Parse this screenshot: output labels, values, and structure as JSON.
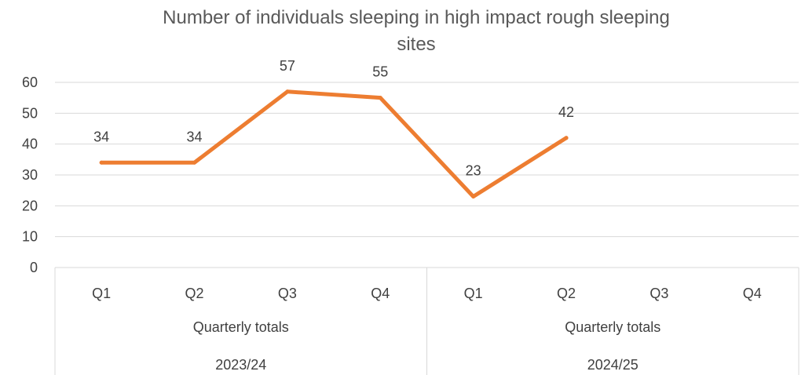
{
  "chart_data": {
    "type": "line",
    "title_line1": "Number of individuals sleeping in high impact rough sleeping",
    "title_line2": "sites",
    "categories": [
      "Q1",
      "Q2",
      "Q3",
      "Q4",
      "Q1",
      "Q2",
      "Q3",
      "Q4"
    ],
    "groups": [
      {
        "label": "Quarterly totals",
        "year": "2023/24"
      },
      {
        "label": "Quarterly totals",
        "year": "2024/25"
      }
    ],
    "series": [
      {
        "values": [
          34,
          34,
          57,
          55,
          23,
          42,
          null,
          null
        ],
        "color": "#ed7d31"
      }
    ],
    "ylim": [
      0,
      60
    ],
    "yticks": [
      0,
      10,
      20,
      30,
      40,
      50,
      60
    ],
    "grid": true,
    "legend": "none"
  }
}
